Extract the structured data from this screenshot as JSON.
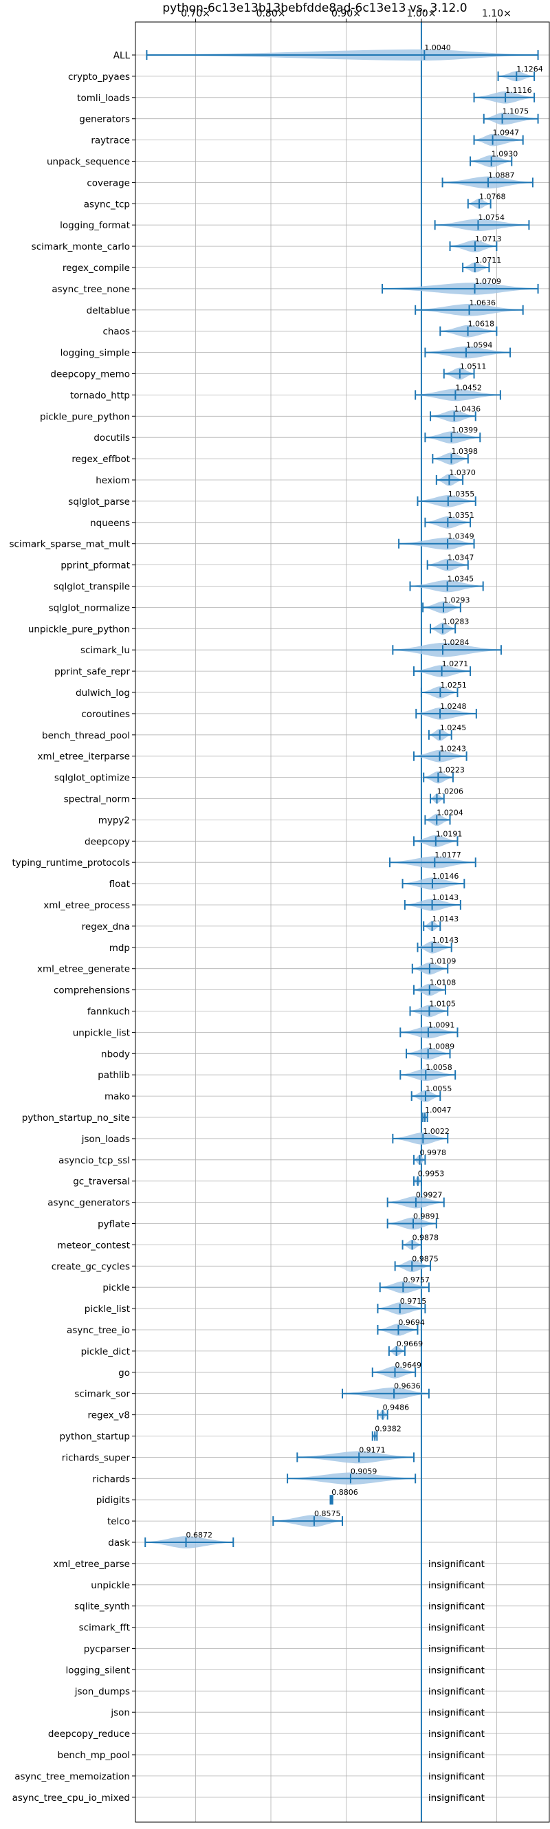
{
  "chart_data": {
    "type": "violin",
    "title": "python-6c13e13b13bebfdde8ad-6c13e13 vs. 3.12.0",
    "xlim": [
      0.62,
      1.17
    ],
    "xticks": [
      0.7,
      0.8,
      0.9,
      1.0,
      1.1
    ],
    "xtick_labels": [
      "0.70×",
      "0.80×",
      "0.90×",
      "1.00×",
      "1.10×"
    ],
    "grid": true,
    "reference_line": 1.0,
    "colors": {
      "violin": "#a6c8e6",
      "line": "#1f77b4",
      "grid": "#b0b0b0"
    },
    "insignificant_label": "insignificant",
    "benchmarks": [
      {
        "name": "ALL",
        "mean": 1.004,
        "label": "1.0040",
        "min": 0.635,
        "max": 1.155,
        "width": 0.55
      },
      {
        "name": "crypto_pyaes",
        "mean": 1.1264,
        "label": "1.1264",
        "min": 1.102,
        "max": 1.15,
        "width": 0.5
      },
      {
        "name": "tomli_loads",
        "mean": 1.1116,
        "label": "1.1116",
        "min": 1.07,
        "max": 1.15,
        "width": 0.6
      },
      {
        "name": "generators",
        "mean": 1.1075,
        "label": "1.1075",
        "min": 1.083,
        "max": 1.155,
        "width": 0.6
      },
      {
        "name": "raytrace",
        "mean": 1.0947,
        "label": "1.0947",
        "min": 1.07,
        "max": 1.135,
        "width": 0.6
      },
      {
        "name": "unpack_sequence",
        "mean": 1.093,
        "label": "1.0930",
        "min": 1.065,
        "max": 1.12,
        "width": 0.6
      },
      {
        "name": "coverage",
        "mean": 1.0887,
        "label": "1.0887",
        "min": 1.028,
        "max": 1.148,
        "width": 0.6
      },
      {
        "name": "async_tcp",
        "mean": 1.0768,
        "label": "1.0768",
        "min": 1.062,
        "max": 1.092,
        "width": 0.5
      },
      {
        "name": "logging_format",
        "mean": 1.0754,
        "label": "1.0754",
        "min": 1.018,
        "max": 1.143,
        "width": 0.6
      },
      {
        "name": "scimark_monte_carlo",
        "mean": 1.0713,
        "label": "1.0713",
        "min": 1.038,
        "max": 1.1,
        "width": 0.6
      },
      {
        "name": "regex_compile",
        "mean": 1.0711,
        "label": "1.0711",
        "min": 1.055,
        "max": 1.09,
        "width": 0.5
      },
      {
        "name": "async_tree_none",
        "mean": 1.0709,
        "label": "1.0709",
        "min": 0.948,
        "max": 1.155,
        "width": 0.6
      },
      {
        "name": "deltablue",
        "mean": 1.0636,
        "label": "1.0636",
        "min": 0.992,
        "max": 1.135,
        "width": 0.6
      },
      {
        "name": "chaos",
        "mean": 1.0618,
        "label": "1.0618",
        "min": 1.025,
        "max": 1.1,
        "width": 0.6
      },
      {
        "name": "logging_simple",
        "mean": 1.0594,
        "label": "1.0594",
        "min": 1.005,
        "max": 1.118,
        "width": 0.6
      },
      {
        "name": "deepcopy_memo",
        "mean": 1.0511,
        "label": "1.0511",
        "min": 1.03,
        "max": 1.07,
        "width": 0.6
      },
      {
        "name": "tornado_http",
        "mean": 1.0452,
        "label": "1.0452",
        "min": 0.992,
        "max": 1.105,
        "width": 0.6
      },
      {
        "name": "pickle_pure_python",
        "mean": 1.0436,
        "label": "1.0436",
        "min": 1.012,
        "max": 1.072,
        "width": 0.6
      },
      {
        "name": "docutils",
        "mean": 1.0399,
        "label": "1.0399",
        "min": 1.005,
        "max": 1.078,
        "width": 0.6
      },
      {
        "name": "regex_effbot",
        "mean": 1.0398,
        "label": "1.0398",
        "min": 1.015,
        "max": 1.062,
        "width": 0.6
      },
      {
        "name": "hexiom",
        "mean": 1.037,
        "label": "1.0370",
        "min": 1.02,
        "max": 1.055,
        "width": 0.6
      },
      {
        "name": "sqlglot_parse",
        "mean": 1.0355,
        "label": "1.0355",
        "min": 0.995,
        "max": 1.072,
        "width": 0.6
      },
      {
        "name": "nqueens",
        "mean": 1.0351,
        "label": "1.0351",
        "min": 1.005,
        "max": 1.065,
        "width": 0.6
      },
      {
        "name": "scimark_sparse_mat_mult",
        "mean": 1.0349,
        "label": "1.0349",
        "min": 0.97,
        "max": 1.07,
        "width": 0.6
      },
      {
        "name": "pprint_pformat",
        "mean": 1.0347,
        "label": "1.0347",
        "min": 1.008,
        "max": 1.062,
        "width": 0.6
      },
      {
        "name": "sqlglot_transpile",
        "mean": 1.0345,
        "label": "1.0345",
        "min": 0.985,
        "max": 1.082,
        "width": 0.6
      },
      {
        "name": "sqlglot_normalize",
        "mean": 1.0293,
        "label": "1.0293",
        "min": 1.002,
        "max": 1.052,
        "width": 0.6
      },
      {
        "name": "unpickle_pure_python",
        "mean": 1.0283,
        "label": "1.0283",
        "min": 1.012,
        "max": 1.045,
        "width": 0.6
      },
      {
        "name": "scimark_lu",
        "mean": 1.0284,
        "label": "1.0284",
        "min": 0.962,
        "max": 1.106,
        "width": 0.7
      },
      {
        "name": "pprint_safe_repr",
        "mean": 1.0271,
        "label": "1.0271",
        "min": 0.99,
        "max": 1.065,
        "width": 0.6
      },
      {
        "name": "dulwich_log",
        "mean": 1.0251,
        "label": "1.0251",
        "min": 1.0,
        "max": 1.048,
        "width": 0.6
      },
      {
        "name": "coroutines",
        "mean": 1.0248,
        "label": "1.0248",
        "min": 0.993,
        "max": 1.073,
        "width": 0.6
      },
      {
        "name": "bench_thread_pool",
        "mean": 1.0245,
        "label": "1.0245",
        "min": 1.01,
        "max": 1.04,
        "width": 0.6
      },
      {
        "name": "xml_etree_iterparse",
        "mean": 1.0243,
        "label": "1.0243",
        "min": 0.99,
        "max": 1.06,
        "width": 0.6
      },
      {
        "name": "sqlglot_optimize",
        "mean": 1.0223,
        "label": "1.0223",
        "min": 1.003,
        "max": 1.042,
        "width": 0.6
      },
      {
        "name": "spectral_norm",
        "mean": 1.0206,
        "label": "1.0206",
        "min": 1.012,
        "max": 1.03,
        "width": 0.5
      },
      {
        "name": "mypy2",
        "mean": 1.0204,
        "label": "1.0204",
        "min": 1.005,
        "max": 1.038,
        "width": 0.6
      },
      {
        "name": "deepcopy",
        "mean": 1.0191,
        "label": "1.0191",
        "min": 0.99,
        "max": 1.048,
        "width": 0.6
      },
      {
        "name": "typing_runtime_protocols",
        "mean": 1.0177,
        "label": "1.0177",
        "min": 0.958,
        "max": 1.072,
        "width": 0.6
      },
      {
        "name": "float",
        "mean": 1.0146,
        "label": "1.0146",
        "min": 0.975,
        "max": 1.057,
        "width": 0.6
      },
      {
        "name": "xml_etree_process",
        "mean": 1.0143,
        "label": "1.0143",
        "min": 0.978,
        "max": 1.052,
        "width": 0.6
      },
      {
        "name": "regex_dna",
        "mean": 1.0143,
        "label": "1.0143",
        "min": 1.003,
        "max": 1.025,
        "width": 0.5
      },
      {
        "name": "mdp",
        "mean": 1.0143,
        "label": "1.0143",
        "min": 0.995,
        "max": 1.04,
        "width": 0.6
      },
      {
        "name": "xml_etree_generate",
        "mean": 1.0109,
        "label": "1.0109",
        "min": 0.988,
        "max": 1.035,
        "width": 0.6
      },
      {
        "name": "comprehensions",
        "mean": 1.0108,
        "label": "1.0108",
        "min": 0.99,
        "max": 1.032,
        "width": 0.6
      },
      {
        "name": "fannkuch",
        "mean": 1.0105,
        "label": "1.0105",
        "min": 0.985,
        "max": 1.035,
        "width": 0.6
      },
      {
        "name": "unpickle_list",
        "mean": 1.0091,
        "label": "1.0091",
        "min": 0.972,
        "max": 1.048,
        "width": 0.6
      },
      {
        "name": "nbody",
        "mean": 1.0089,
        "label": "1.0089",
        "min": 0.98,
        "max": 1.038,
        "width": 0.6
      },
      {
        "name": "pathlib",
        "mean": 1.0058,
        "label": "1.0058",
        "min": 0.972,
        "max": 1.045,
        "width": 0.6
      },
      {
        "name": "mako",
        "mean": 1.0055,
        "label": "1.0055",
        "min": 0.987,
        "max": 1.025,
        "width": 0.6
      },
      {
        "name": "python_startup_no_site",
        "mean": 1.0047,
        "label": "1.0047",
        "min": 1.002,
        "max": 1.008,
        "width": 0.4
      },
      {
        "name": "json_loads",
        "mean": 1.0022,
        "label": "1.0022",
        "min": 0.962,
        "max": 1.035,
        "width": 0.6
      },
      {
        "name": "asyncio_tcp_ssl",
        "mean": 0.9978,
        "label": "0.9978",
        "min": 0.99,
        "max": 1.005,
        "width": 0.5
      },
      {
        "name": "gc_traversal",
        "mean": 0.9953,
        "label": "0.9953",
        "min": 0.99,
        "max": 1.0,
        "width": 0.5
      },
      {
        "name": "async_generators",
        "mean": 0.9927,
        "label": "0.9927",
        "min": 0.955,
        "max": 1.03,
        "width": 0.6
      },
      {
        "name": "pyflate",
        "mean": 0.9891,
        "label": "0.9891",
        "min": 0.955,
        "max": 1.02,
        "width": 0.6
      },
      {
        "name": "meteor_contest",
        "mean": 0.9878,
        "label": "0.9878",
        "min": 0.975,
        "max": 1.0,
        "width": 0.5
      },
      {
        "name": "create_gc_cycles",
        "mean": 0.9875,
        "label": "0.9875",
        "min": 0.965,
        "max": 1.012,
        "width": 0.6
      },
      {
        "name": "pickle",
        "mean": 0.9757,
        "label": "0.9757",
        "min": 0.945,
        "max": 1.01,
        "width": 0.6
      },
      {
        "name": "pickle_list",
        "mean": 0.9715,
        "label": "0.9715",
        "min": 0.942,
        "max": 1.005,
        "width": 0.6
      },
      {
        "name": "async_tree_io",
        "mean": 0.9694,
        "label": "0.9694",
        "min": 0.942,
        "max": 0.995,
        "width": 0.6
      },
      {
        "name": "pickle_dict",
        "mean": 0.9669,
        "label": "0.9669",
        "min": 0.957,
        "max": 0.978,
        "width": 0.5
      },
      {
        "name": "go",
        "mean": 0.9649,
        "label": "0.9649",
        "min": 0.935,
        "max": 0.992,
        "width": 0.6
      },
      {
        "name": "scimark_sor",
        "mean": 0.9636,
        "label": "0.9636",
        "min": 0.895,
        "max": 1.01,
        "width": 0.6
      },
      {
        "name": "regex_v8",
        "mean": 0.9486,
        "label": "0.9486",
        "min": 0.942,
        "max": 0.955,
        "width": 0.5
      },
      {
        "name": "python_startup",
        "mean": 0.9382,
        "label": "0.9382",
        "min": 0.935,
        "max": 0.941,
        "width": 0.4
      },
      {
        "name": "richards_super",
        "mean": 0.9171,
        "label": "0.9171",
        "min": 0.835,
        "max": 0.99,
        "width": 0.6
      },
      {
        "name": "richards",
        "mean": 0.9059,
        "label": "0.9059",
        "min": 0.822,
        "max": 0.992,
        "width": 0.6
      },
      {
        "name": "pidigits",
        "mean": 0.8806,
        "label": "0.8806",
        "min": 0.879,
        "max": 0.882,
        "width": 0.3
      },
      {
        "name": "telco",
        "mean": 0.8575,
        "label": "0.8575",
        "min": 0.803,
        "max": 0.895,
        "width": 0.6
      },
      {
        "name": "dask",
        "mean": 0.6872,
        "label": "0.6872",
        "min": 0.633,
        "max": 0.75,
        "width": 0.6
      }
    ],
    "insignificant": [
      "xml_etree_parse",
      "unpickle",
      "sqlite_synth",
      "scimark_fft",
      "pycparser",
      "logging_silent",
      "json_dumps",
      "json",
      "deepcopy_reduce",
      "bench_mp_pool",
      "async_tree_memoization",
      "async_tree_cpu_io_mixed"
    ]
  }
}
